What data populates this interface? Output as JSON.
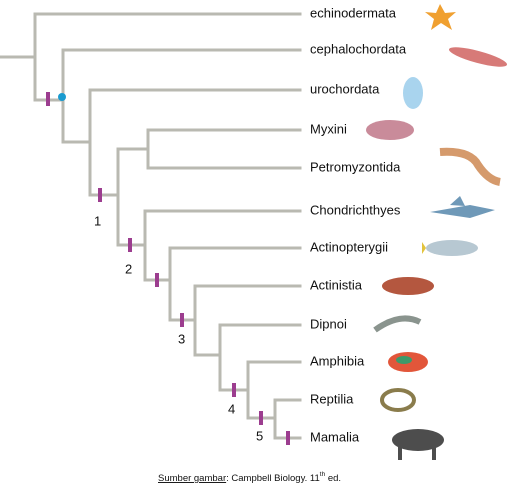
{
  "taxa": [
    "echinodermata",
    "cephalochordata",
    "urochordata",
    "Myxini",
    "Petromyzontida",
    "Chondrichthyes",
    "Actinopterygii",
    "Actinistia",
    "Dipnoi",
    "Amphibia",
    "Reptilia",
    "Mamalia"
  ],
  "derived_traits": [
    "1",
    "2",
    "3",
    "4",
    "5"
  ],
  "caption": {
    "source_label": "Sumber gambar",
    "text": ": Campbell Biology. 11",
    "superscript": "th",
    "edition": " ed."
  }
}
